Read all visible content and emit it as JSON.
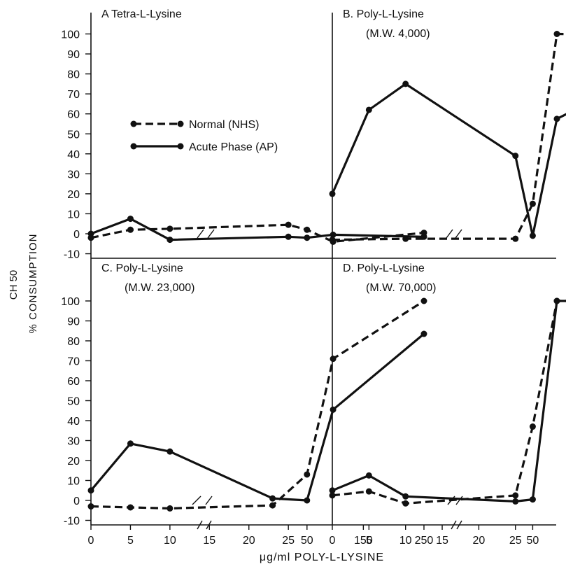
{
  "y_axis_label_top": "CH 50",
  "y_axis_label": "% CONSUMPTION",
  "x_axis_label": "μg/ml POLY-L-LYSINE",
  "legend": [
    {
      "label": "Normal (NHS)",
      "style": "dashed"
    },
    {
      "label": "Acute Phase (AP)",
      "style": "solid"
    }
  ],
  "x_tick_labels": [
    "0",
    "5",
    "10",
    "15",
    "20",
    "25",
    "50",
    "150",
    "250"
  ],
  "y_tick_labels": [
    "-10",
    "0",
    "10",
    "20",
    "30",
    "40",
    "50",
    "60",
    "70",
    "80",
    "90",
    "100"
  ],
  "colors": {
    "ink": "#111111",
    "background": "#ffffff"
  },
  "chart_data": [
    {
      "type": "line",
      "panel_title": "A  Tetra-L-Lysine",
      "panel_subtitle": "",
      "ylim": [
        -10,
        100
      ],
      "series": [
        {
          "name": "Normal (NHS)",
          "style": "dashed",
          "x": [
            0,
            5,
            10,
            25,
            50,
            100,
            250
          ],
          "y": [
            -2,
            2,
            2.5,
            4.5,
            2,
            -4,
            0.5
          ]
        },
        {
          "name": "Acute Phase (AP)",
          "style": "solid",
          "x": [
            0,
            5,
            10,
            25,
            50,
            100,
            250
          ],
          "y": [
            0,
            7.5,
            -3,
            -1.5,
            -2,
            -0.5,
            -1.5
          ]
        }
      ]
    },
    {
      "type": "line",
      "panel_title": "B. Poly-L-Lysine",
      "panel_subtitle": "(M.W. 4,000)",
      "ylim": [
        -10,
        100
      ],
      "series": [
        {
          "name": "Normal (NHS)",
          "style": "dashed",
          "x": [
            0,
            10,
            25,
            50,
            100,
            250
          ],
          "y": [
            -3,
            -2.5,
            -2.5,
            15,
            100,
            99.5
          ]
        },
        {
          "name": "Acute Phase (AP)",
          "style": "solid",
          "x": [
            0,
            5,
            10,
            25,
            50,
            100,
            250
          ],
          "y": [
            20,
            62,
            75,
            39,
            -1,
            57.5,
            78.5
          ]
        }
      ]
    },
    {
      "type": "line",
      "panel_title": "C. Poly-L-Lysine",
      "panel_subtitle": "(M.W. 23,000)",
      "ylim": [
        -10,
        100
      ],
      "series": [
        {
          "name": "Normal (NHS)",
          "style": "dashed",
          "x": [
            0,
            5,
            10,
            23,
            50,
            100,
            250
          ],
          "y": [
            -3,
            -3.5,
            -4,
            -2.5,
            13,
            71,
            100
          ]
        },
        {
          "name": "Acute Phase (AP)",
          "style": "solid",
          "x": [
            0,
            5,
            10,
            23,
            50,
            100,
            250
          ],
          "y": [
            5,
            28.5,
            24.5,
            1,
            0,
            45.5,
            83.5
          ]
        }
      ]
    },
    {
      "type": "line",
      "panel_title": "D. Poly-L-Lysine",
      "panel_subtitle": "(M.W. 70,000)",
      "ylim": [
        -10,
        100
      ],
      "series": [
        {
          "name": "Normal (NHS)",
          "style": "dashed",
          "x": [
            0,
            5,
            10,
            25,
            50,
            100,
            250
          ],
          "y": [
            2.5,
            4.5,
            -1.5,
            2.5,
            37,
            100,
            100
          ]
        },
        {
          "name": "Acute Phase (AP)",
          "style": "solid",
          "x": [
            0,
            5,
            10,
            25,
            50,
            100,
            250
          ],
          "y": [
            5,
            12.5,
            2,
            -0.5,
            0.5,
            100,
            100
          ]
        }
      ]
    }
  ]
}
